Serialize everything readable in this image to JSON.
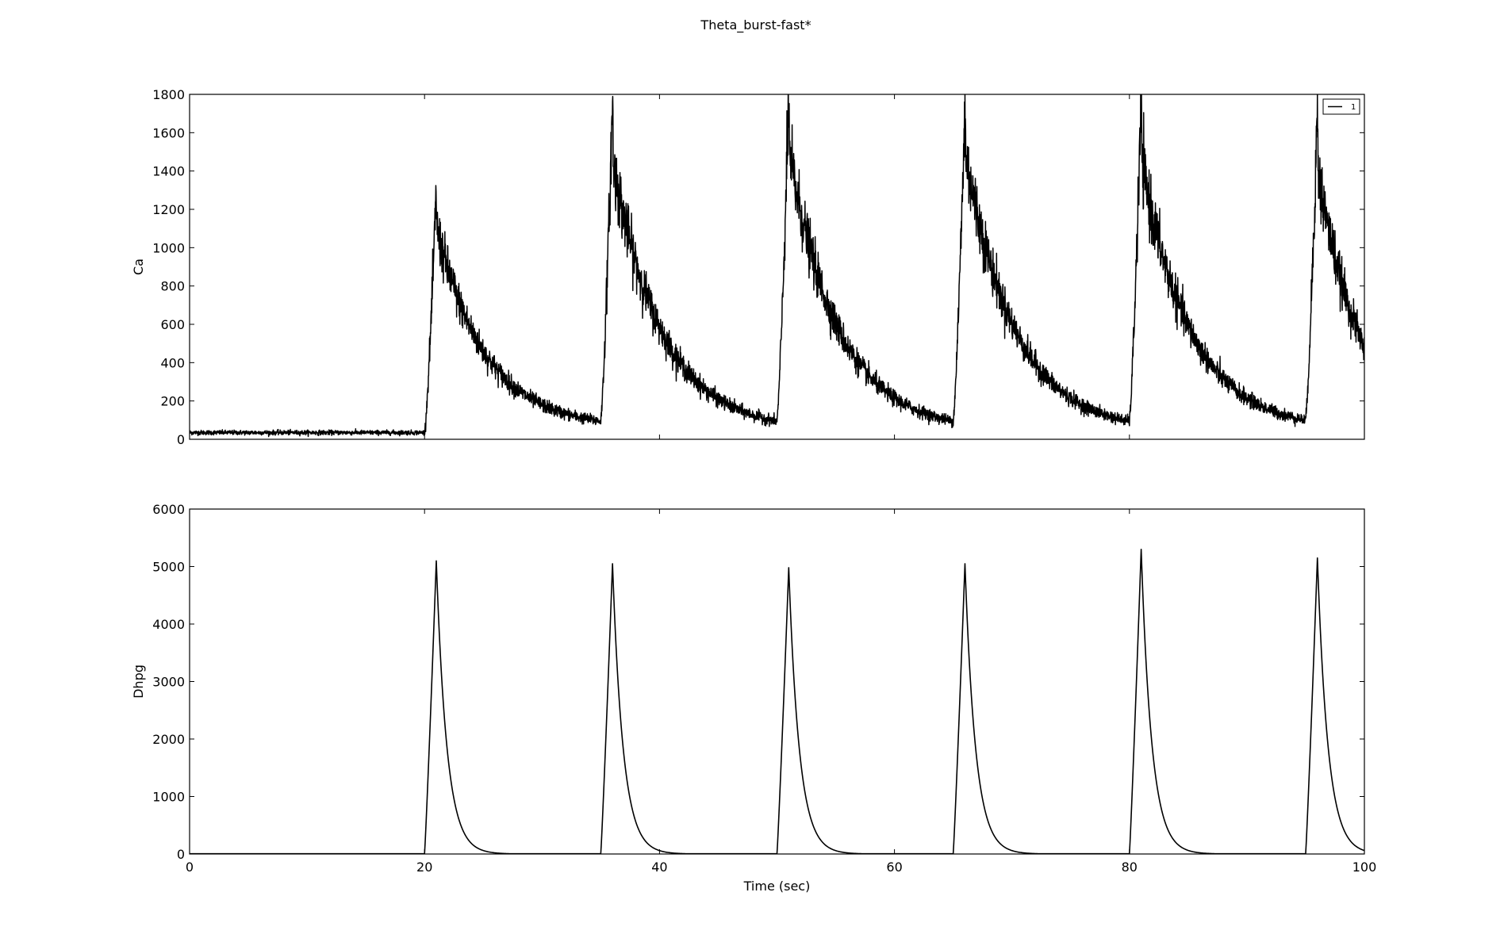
{
  "figure": {
    "title": "Theta_burst-fast*"
  },
  "chart_data": [
    {
      "type": "line",
      "title": "Theta_burst-fast*",
      "xlabel": "",
      "ylabel": "Ca",
      "xlim": [
        0,
        100
      ],
      "ylim": [
        0,
        1800
      ],
      "xticks": [
        0,
        20,
        40,
        60,
        80,
        100
      ],
      "xtick_labels_shown": false,
      "yticks": [
        0,
        200,
        400,
        600,
        800,
        1000,
        1200,
        1400,
        1600,
        1800
      ],
      "grid": false,
      "legend": {
        "position": "top-right",
        "entries": [
          "1"
        ]
      },
      "series": [
        {
          "name": "1",
          "color": "#000000",
          "noisy": true,
          "baseline": 35,
          "baseline_noise": 12,
          "decay_tau_sec": 4.2,
          "residual_fraction_noise": 0.12,
          "events": [
            {
              "onset": 20.0,
              "peak_time": 21.0,
              "peak": 1290,
              "decay_start_value": 1100,
              "end_time": 35.0,
              "end_value": 95
            },
            {
              "onset": 35.0,
              "peak_time": 36.0,
              "peak": 1750,
              "decay_start_value": 1450,
              "end_time": 50.0,
              "end_value": 95
            },
            {
              "onset": 50.0,
              "peak_time": 51.0,
              "peak": 1760,
              "decay_start_value": 1500,
              "end_time": 65.0,
              "end_value": 95
            },
            {
              "onset": 65.0,
              "peak_time": 66.0,
              "peak": 1720,
              "decay_start_value": 1500,
              "end_time": 80.0,
              "end_value": 95
            },
            {
              "onset": 80.0,
              "peak_time": 81.0,
              "peak": 1760,
              "decay_start_value": 1450,
              "end_time": 95.0,
              "end_value": 100
            },
            {
              "onset": 95.0,
              "peak_time": 96.0,
              "peak": 1710,
              "decay_start_value": 1400,
              "end_time": 100.0,
              "end_value": 480
            }
          ]
        }
      ]
    },
    {
      "type": "line",
      "title": "",
      "xlabel": "Time (sec)",
      "ylabel": "Dhpg",
      "xlim": [
        0,
        100
      ],
      "ylim": [
        0,
        6000
      ],
      "xticks": [
        0,
        20,
        40,
        60,
        80,
        100
      ],
      "yticks": [
        0,
        1000,
        2000,
        3000,
        4000,
        5000,
        6000
      ],
      "grid": false,
      "series": [
        {
          "color": "#000000",
          "noisy": false,
          "baseline": 5,
          "decay_tau_sec": 0.9,
          "events": [
            {
              "onset": 20.0,
              "peak_time": 21.0,
              "peak": 5100
            },
            {
              "onset": 35.0,
              "peak_time": 36.0,
              "peak": 5050
            },
            {
              "onset": 50.0,
              "peak_time": 51.0,
              "peak": 4980
            },
            {
              "onset": 65.0,
              "peak_time": 66.0,
              "peak": 5050
            },
            {
              "onset": 80.0,
              "peak_time": 81.0,
              "peak": 5300
            },
            {
              "onset": 95.0,
              "peak_time": 96.0,
              "peak": 5150
            }
          ]
        }
      ]
    }
  ]
}
